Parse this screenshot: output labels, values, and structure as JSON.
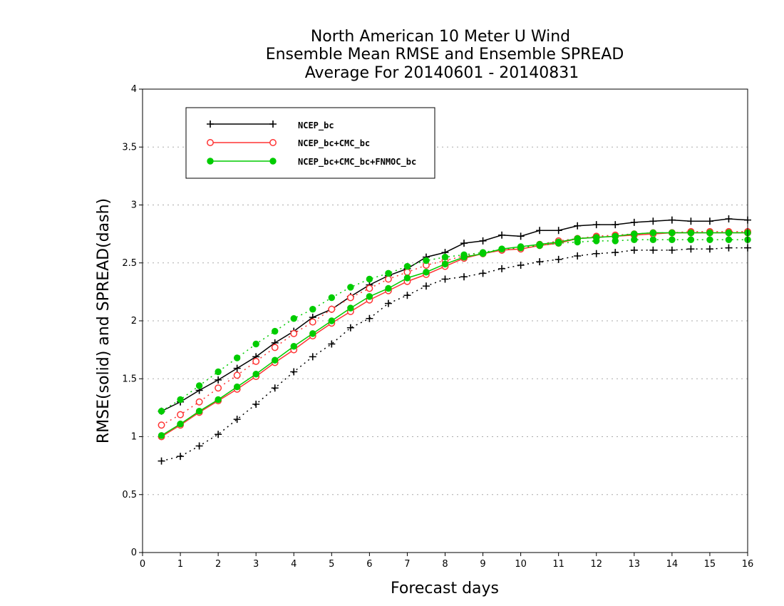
{
  "chart_data": {
    "type": "line",
    "title_lines": [
      "North American 10 Meter U Wind",
      "Ensemble Mean RMSE and Ensemble SPREAD",
      "Average For 20140601 - 20140831"
    ],
    "xlabel": "Forecast days",
    "ylabel": "RMSE(solid) and SPREAD(dash)",
    "xlim": [
      0,
      16
    ],
    "ylim": [
      0,
      4
    ],
    "xticks": [
      "0",
      "1",
      "2",
      "3",
      "4",
      "5",
      "6",
      "7",
      "8",
      "9",
      "10",
      "11",
      "12",
      "13",
      "14",
      "15",
      "16"
    ],
    "yticks": [
      "0",
      "0.5",
      "1",
      "1.5",
      "2",
      "2.5",
      "3",
      "3.5",
      "4"
    ],
    "y_grid": true,
    "legend_position": "top-left",
    "x": [
      0.5,
      1,
      1.5,
      2,
      2.5,
      3,
      3.5,
      4,
      4.5,
      5,
      5.5,
      6,
      6.5,
      7,
      7.5,
      8,
      8.5,
      9,
      9.5,
      10,
      10.5,
      11,
      11.5,
      12,
      12.5,
      13,
      13.5,
      14,
      14.5,
      15,
      15.5,
      16
    ],
    "series": [
      {
        "name": "NCEP_bc",
        "color": "#000000",
        "marker": "plus",
        "rmse": [
          1.22,
          1.3,
          1.4,
          1.49,
          1.59,
          1.69,
          1.81,
          1.91,
          2.03,
          2.1,
          2.21,
          2.31,
          2.39,
          2.45,
          2.55,
          2.59,
          2.67,
          2.69,
          2.74,
          2.73,
          2.78,
          2.78,
          2.82,
          2.83,
          2.83,
          2.85,
          2.86,
          2.87,
          2.86,
          2.86,
          2.88,
          2.87
        ],
        "spread": [
          0.79,
          0.83,
          0.92,
          1.02,
          1.15,
          1.28,
          1.42,
          1.56,
          1.69,
          1.8,
          1.94,
          2.02,
          2.15,
          2.22,
          2.3,
          2.36,
          2.38,
          2.41,
          2.45,
          2.48,
          2.51,
          2.53,
          2.56,
          2.58,
          2.59,
          2.61,
          2.61,
          2.61,
          2.62,
          2.62,
          2.63,
          2.63
        ]
      },
      {
        "name": "NCEP_bc+CMC_bc",
        "color": "#ff3333",
        "marker": "open-circle",
        "rmse": [
          1.0,
          1.1,
          1.21,
          1.31,
          1.41,
          1.52,
          1.64,
          1.75,
          1.87,
          1.98,
          2.08,
          2.18,
          2.26,
          2.34,
          2.4,
          2.47,
          2.54,
          2.58,
          2.61,
          2.62,
          2.65,
          2.67,
          2.71,
          2.72,
          2.73,
          2.74,
          2.75,
          2.76,
          2.76,
          2.76,
          2.76,
          2.76
        ],
        "spread": [
          1.1,
          1.19,
          1.3,
          1.42,
          1.53,
          1.65,
          1.77,
          1.89,
          1.99,
          2.1,
          2.2,
          2.28,
          2.36,
          2.42,
          2.48,
          2.52,
          2.56,
          2.58,
          2.61,
          2.63,
          2.66,
          2.69,
          2.71,
          2.73,
          2.74,
          2.75,
          2.76,
          2.76,
          2.77,
          2.77,
          2.77,
          2.77
        ]
      },
      {
        "name": "NCEP_bc+CMC_bc+FNMOC_bc",
        "color": "#00cc00",
        "marker": "filled-circle",
        "rmse": [
          1.01,
          1.11,
          1.22,
          1.32,
          1.43,
          1.54,
          1.66,
          1.78,
          1.89,
          2.0,
          2.11,
          2.21,
          2.28,
          2.37,
          2.42,
          2.49,
          2.55,
          2.58,
          2.62,
          2.64,
          2.66,
          2.68,
          2.71,
          2.72,
          2.73,
          2.75,
          2.76,
          2.76,
          2.76,
          2.76,
          2.76,
          2.76
        ],
        "spread": [
          1.22,
          1.32,
          1.44,
          1.56,
          1.68,
          1.8,
          1.91,
          2.02,
          2.1,
          2.2,
          2.29,
          2.36,
          2.41,
          2.47,
          2.52,
          2.55,
          2.57,
          2.59,
          2.62,
          2.63,
          2.65,
          2.67,
          2.68,
          2.69,
          2.69,
          2.7,
          2.7,
          2.7,
          2.7,
          2.7,
          2.7,
          2.7
        ]
      }
    ]
  }
}
